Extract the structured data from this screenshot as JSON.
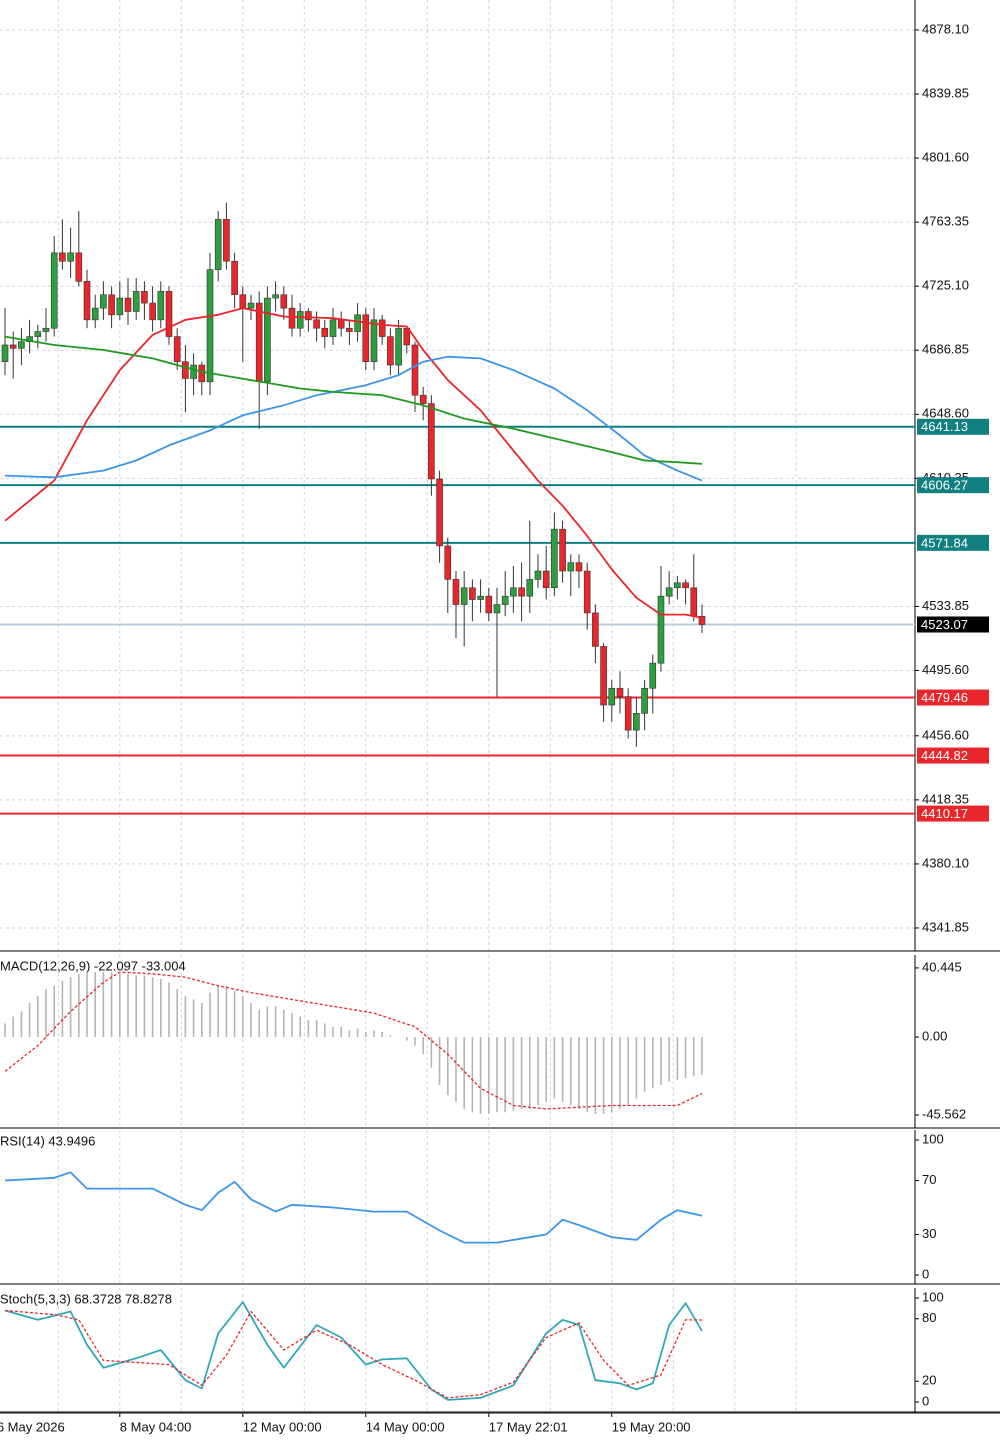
{
  "chart_data": [
    {
      "type": "candlestick",
      "xlim": [
        -0.61,
        110.98
      ],
      "ylim": [
        4328.7,
        4896.0
      ],
      "yticks": [
        {
          "value": 4878.1,
          "label": "4878.10"
        },
        4839.85,
        {
          "value": 4801.6,
          "label": "4801.60"
        },
        4763.35,
        {
          "value": 4725.1,
          "label": "4725.10"
        },
        4686.85,
        {
          "value": 4648.6,
          "label": "4648.60"
        },
        4610.35,
        4533.85,
        {
          "value": 4495.6,
          "label": "4495.60"
        },
        {
          "value": 4456.6,
          "label": "4456.60"
        },
        4418.35,
        {
          "value": 4380.1,
          "label": "4380.10"
        },
        4341.85
      ],
      "xticks": [
        {
          "value": -1,
          "label": "6 May 2026"
        },
        {
          "value": 14,
          "label": "8 May 04:00"
        },
        {
          "value": 29,
          "label": "12 May 00:00"
        },
        {
          "value": 44,
          "label": "14 May 00:00"
        },
        {
          "value": 59,
          "label": "17 May 22:01"
        },
        {
          "value": 74,
          "label": "19 May 20:00"
        }
      ],
      "grid": true,
      "up_color": "#2e9e3e",
      "down_color": "#e8262b",
      "open": [
        4680,
        4690,
        4688,
        4692,
        4695,
        4698,
        4700,
        4745,
        4740,
        4745,
        4728,
        4705,
        4712,
        4720,
        4708,
        4718,
        4710,
        4722,
        4715,
        4705,
        4722,
        4695,
        4680,
        4670,
        4678,
        4668,
        4735,
        4765,
        4740,
        4720,
        4712,
        4715,
        4668,
        4718,
        4720,
        4712,
        4700,
        4710,
        4705,
        4700,
        4695,
        4705,
        4700,
        4698,
        4708,
        4680,
        4705,
        4695,
        4678,
        4700,
        4690,
        4660,
        4655,
        4610,
        4570,
        4550,
        4535,
        4545,
        4538,
        4540,
        4530,
        4535,
        4540,
        4545,
        4540,
        4550,
        4555,
        4545,
        4580,
        4555,
        4560,
        4555,
        4530,
        4510,
        4475,
        4485,
        4480,
        4460,
        4470,
        4485,
        4500,
        4540,
        4545,
        4548,
        4545,
        4528
      ],
      "high": [
        4712,
        4698,
        4700,
        4705,
        4702,
        4712,
        4755,
        4765,
        4760,
        4770,
        4735,
        4720,
        4728,
        4725,
        4728,
        4730,
        4730,
        4728,
        4725,
        4728,
        4725,
        4700,
        4690,
        4685,
        4680,
        4745,
        4770,
        4775,
        4745,
        4725,
        4720,
        4722,
        4725,
        4728,
        4725,
        4720,
        4715,
        4712,
        4710,
        4705,
        4712,
        4710,
        4705,
        4715,
        4712,
        4712,
        4708,
        4700,
        4705,
        4700,
        4692,
        4665,
        4660,
        4615,
        4575,
        4555,
        4555,
        4550,
        4550,
        4545,
        4545,
        4555,
        4558,
        4560,
        4585,
        4565,
        4570,
        4590,
        4585,
        4565,
        4565,
        4560,
        4535,
        4512,
        4490,
        4495,
        4485,
        4480,
        4490,
        4505,
        4558,
        4555,
        4552,
        4550,
        4565,
        4535
      ],
      "low": [
        4672,
        4670,
        4678,
        4685,
        4688,
        4692,
        4695,
        4735,
        4730,
        4725,
        4700,
        4700,
        4705,
        4700,
        4705,
        4702,
        4705,
        4705,
        4698,
        4700,
        4690,
        4675,
        4650,
        4660,
        4660,
        4660,
        4728,
        4735,
        4712,
        4680,
        4705,
        4640,
        4660,
        4710,
        4705,
        4695,
        4695,
        4698,
        4692,
        4688,
        4690,
        4695,
        4690,
        4692,
        4675,
        4675,
        4690,
        4672,
        4672,
        4685,
        4650,
        4645,
        4600,
        4560,
        4530,
        4515,
        4510,
        4525,
        4530,
        4525,
        4480,
        4528,
        4530,
        4525,
        4530,
        4545,
        4538,
        4540,
        4548,
        4540,
        4545,
        4520,
        4500,
        4465,
        4465,
        4470,
        4455,
        4450,
        4460,
        4470,
        4495,
        4535,
        4538,
        4535,
        4525,
        4518
      ],
      "close": [
        4690,
        4688,
        4692,
        4695,
        4698,
        4700,
        4745,
        4740,
        4745,
        4728,
        4705,
        4712,
        4720,
        4708,
        4718,
        4710,
        4722,
        4715,
        4705,
        4722,
        4695,
        4680,
        4670,
        4678,
        4668,
        4735,
        4765,
        4740,
        4720,
        4712,
        4715,
        4668,
        4718,
        4720,
        4712,
        4700,
        4710,
        4705,
        4700,
        4695,
        4705,
        4700,
        4698,
        4708,
        4680,
        4705,
        4695,
        4678,
        4700,
        4690,
        4660,
        4655,
        4610,
        4570,
        4550,
        4535,
        4545,
        4538,
        4540,
        4530,
        4535,
        4540,
        4545,
        4540,
        4550,
        4555,
        4545,
        4580,
        4555,
        4560,
        4555,
        4530,
        4510,
        4475,
        4485,
        4480,
        4460,
        4470,
        4485,
        4500,
        4540,
        4545,
        4548,
        4545,
        4528,
        4523.07
      ],
      "series": [
        {
          "color": "#e8262b",
          "x": [
            0,
            6,
            10,
            14,
            18,
            22,
            26,
            29,
            34,
            40,
            46,
            49,
            51,
            54,
            58,
            62,
            65,
            68,
            71,
            74,
            77,
            80,
            83,
            85
          ],
          "values": [
            4585,
            4609,
            4645,
            4675,
            4696,
            4705,
            4708,
            4712,
            4707,
            4706,
            4702,
            4701,
            4687,
            4669,
            4651,
            4627,
            4609,
            4594,
            4576,
            4556,
            4539,
            4529,
            4529,
            4527
          ]
        },
        {
          "color": "#3d95e8",
          "x": [
            0,
            6,
            12,
            16,
            20,
            25,
            29,
            34,
            38,
            44,
            48,
            51,
            54,
            58,
            62,
            67,
            71,
            75,
            78,
            82,
            85
          ],
          "values": [
            4612,
            4611,
            4615,
            4621,
            4630,
            4639,
            4648,
            4654,
            4660,
            4666,
            4672,
            4680,
            4683,
            4682,
            4675,
            4664,
            4651,
            4636,
            4624,
            4615,
            4609
          ]
        },
        {
          "color": "#1f9a1f",
          "x": [
            0,
            6,
            12,
            18,
            24,
            30,
            36,
            40,
            46,
            51,
            56,
            62,
            68,
            74,
            78,
            82,
            85
          ],
          "values": [
            4695,
            4690,
            4687,
            4682,
            4674,
            4669,
            4664,
            4662,
            4660,
            4654,
            4646,
            4640,
            4633,
            4626,
            4621,
            4620,
            4619
          ]
        }
      ],
      "levels": [
        {
          "value": 4641.13,
          "color": "#0f7f7f"
        },
        {
          "value": 4606.27,
          "color": "#0f7f7f"
        },
        {
          "value": 4571.84,
          "color": "#0f7f7f"
        },
        {
          "value": 4523.07,
          "color": "#b8cce0"
        },
        {
          "value": 4479.46,
          "color": "#e8262b"
        },
        {
          "value": 4444.82,
          "color": "#e8262b"
        },
        {
          "value": 4410.17,
          "color": "#e8262b"
        }
      ]
    },
    {
      "type": "macd",
      "title": "MACD(12,26,9) -22.097 -33.004",
      "xlim": [
        -0.61,
        110.98
      ],
      "ylim": [
        -52.6,
        48.0
      ],
      "yticks": [
        40.445,
        {
          "value": 0,
          "label": "0.00"
        },
        -45.562
      ],
      "histogram_color": "#b4b4b4",
      "histogram": [
        8,
        12,
        15,
        20,
        24,
        28,
        30,
        33,
        35,
        37,
        38,
        38,
        38,
        38,
        37,
        37,
        36,
        36,
        35,
        34,
        32,
        28,
        24,
        22,
        20,
        26,
        30,
        30,
        27,
        24,
        20,
        16,
        18,
        18,
        16,
        14,
        12,
        10,
        10,
        8,
        6,
        6,
        4,
        5,
        3,
        4,
        3,
        1,
        0,
        -2,
        -5,
        -10,
        -18,
        -28,
        -34,
        -38,
        -42,
        -44,
        -45,
        -45,
        -44,
        -44,
        -43,
        -42,
        -42,
        -40,
        -38,
        -36,
        -38,
        -40,
        -42,
        -44,
        -45,
        -45,
        -44,
        -42,
        -40,
        -36,
        -32,
        -30,
        -28,
        -26,
        -25,
        -24,
        -23,
        -22.097
      ],
      "series": [
        {
          "color": "#e8262b",
          "dash": true,
          "x": [
            0,
            4,
            8,
            12,
            14,
            18,
            22,
            26,
            30,
            35,
            40,
            45,
            50,
            54,
            58,
            62,
            66,
            70,
            74,
            78,
            82,
            85
          ],
          "values": [
            -20,
            -5,
            15,
            32,
            38,
            37,
            35,
            30,
            26,
            22,
            18,
            14,
            6,
            -10,
            -30,
            -40,
            -42,
            -41,
            -40,
            -40,
            -40,
            -33.004
          ]
        }
      ]
    },
    {
      "type": "line",
      "title": "RSI(14) 43.9496",
      "xlim": [
        -0.61,
        110.98
      ],
      "ylim": [
        -5.9,
        107.4
      ],
      "yticks": [
        100,
        70,
        30,
        0
      ],
      "series": [
        {
          "color": "#3d95e8",
          "x": [
            0,
            6,
            8,
            10,
            14,
            18,
            22,
            24,
            26,
            28,
            30,
            33,
            35,
            40,
            45,
            49,
            53,
            56,
            60,
            64,
            66,
            68,
            70,
            74,
            77,
            80,
            82,
            85
          ],
          "values": [
            70,
            72,
            76,
            64,
            64,
            64,
            52,
            48,
            61,
            69,
            56,
            47,
            52,
            50,
            47,
            47,
            33,
            24,
            24,
            28,
            30,
            41,
            37,
            28,
            26,
            41,
            48,
            43.9496
          ]
        }
      ]
    },
    {
      "type": "line",
      "title": "Stoch(5,3,3) 68.3728 78.8278",
      "xlim": [
        -0.61,
        110.98
      ],
      "ylim": [
        -9.6,
        109.6
      ],
      "yticks": [
        100,
        80,
        20,
        0
      ],
      "series": [
        {
          "color": "#30a8b8",
          "x": [
            0,
            4,
            8,
            10,
            12,
            16,
            19,
            22,
            24,
            26,
            29,
            32,
            34,
            38,
            41,
            44,
            46,
            49,
            52,
            54,
            58,
            62,
            66,
            68,
            70,
            72,
            75,
            77,
            79,
            81,
            83,
            85
          ],
          "values": [
            88,
            79,
            87,
            55,
            33,
            42,
            50,
            21,
            13,
            66,
            96,
            55,
            33,
            74,
            62,
            36,
            41,
            42,
            12,
            2,
            4,
            16,
            66,
            79,
            74,
            21,
            18,
            12,
            18,
            74,
            95,
            68.3728
          ]
        },
        {
          "color": "#e8262b",
          "dash": true,
          "x": [
            0,
            6,
            9,
            12,
            16,
            20,
            24,
            27,
            30,
            34,
            38,
            42,
            46,
            50,
            54,
            58,
            62,
            66,
            70,
            73,
            76,
            80,
            83,
            85
          ],
          "values": [
            88,
            84,
            79,
            40,
            38,
            36,
            16,
            45,
            87,
            50,
            69,
            55,
            36,
            21,
            4,
            7,
            19,
            62,
            76,
            40,
            16,
            26,
            79,
            78.8278
          ]
        }
      ]
    }
  ]
}
